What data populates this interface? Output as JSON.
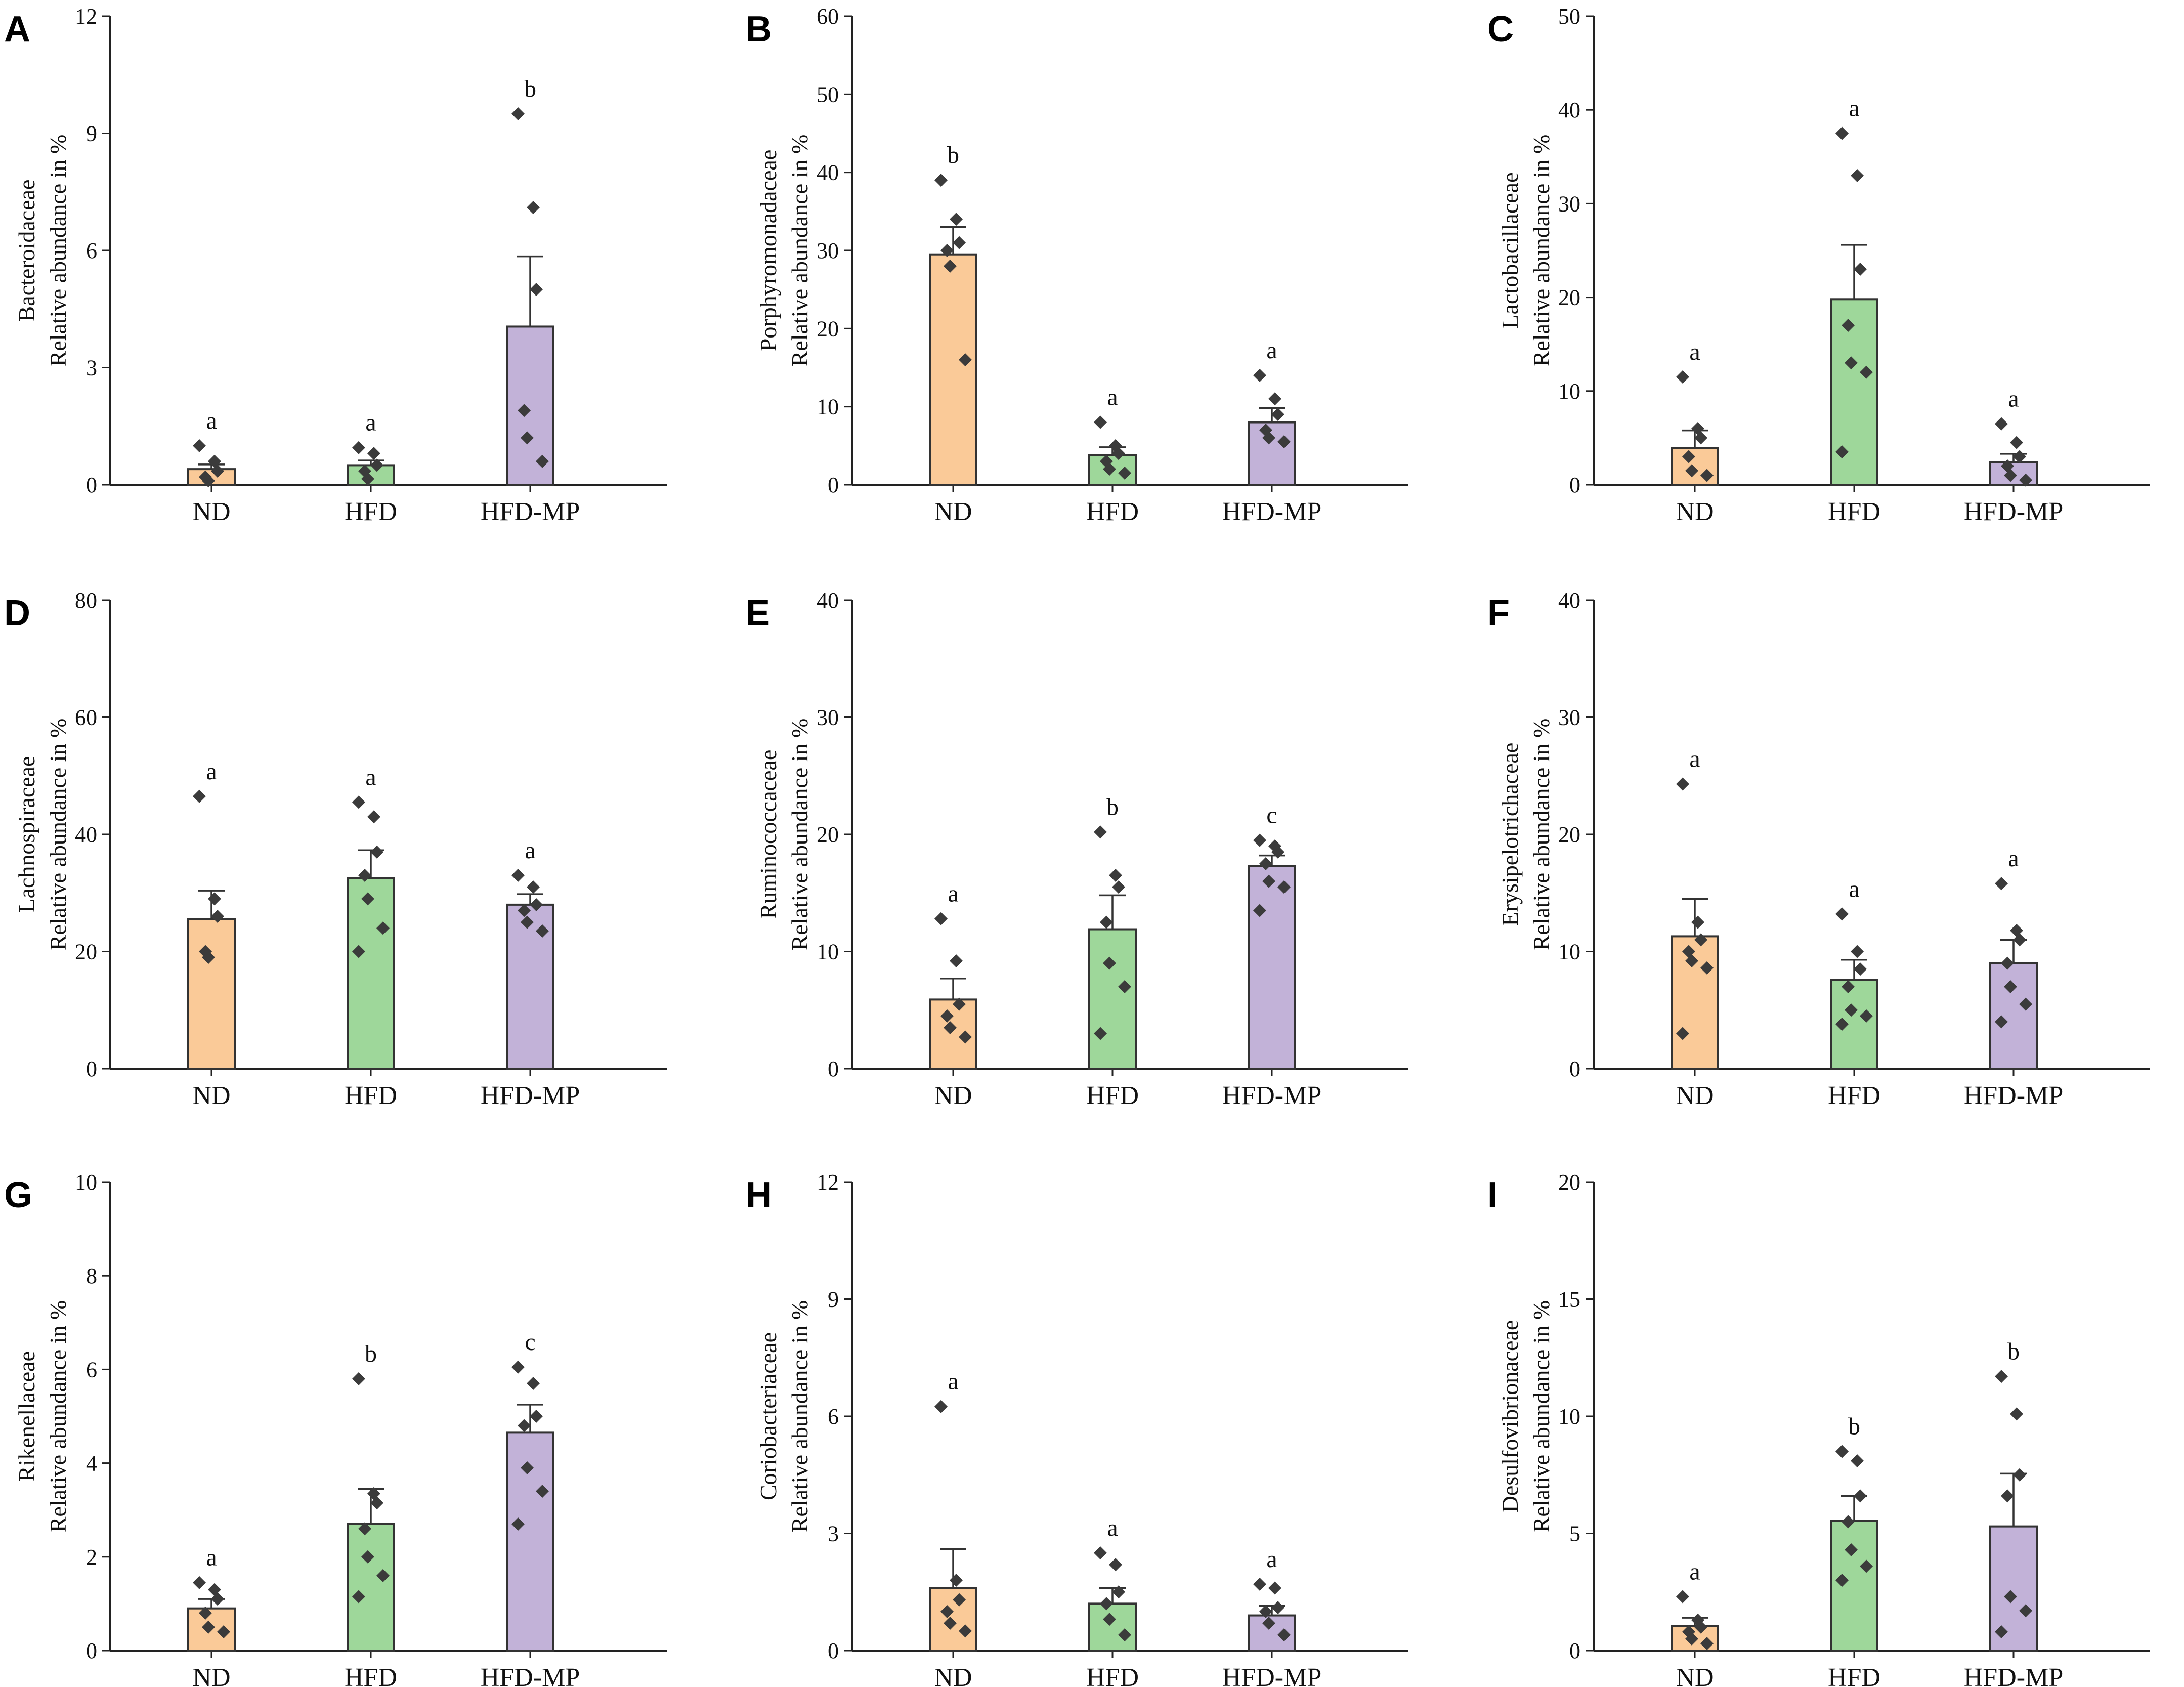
{
  "colors": {
    "ND": "#FACA98",
    "HFD": "#9ED79A",
    "HFD-MP": "#C2B2D8"
  },
  "chart_data": [
    {
      "type": "bar",
      "panel": "A",
      "title": "",
      "ylabel": [
        "Bacteroidaceae",
        "Relative abundance in %"
      ],
      "categories": [
        "ND",
        "HFD",
        "HFD-MP"
      ],
      "ylim": [
        0,
        12
      ],
      "yticks": [
        0,
        3,
        6,
        9,
        12
      ],
      "ytick_labels": [
        "0",
        "3",
        "6",
        "9",
        "12"
      ],
      "values": [
        0.4,
        0.5,
        4.05
      ],
      "errors": [
        0.12,
        0.12,
        1.8
      ],
      "significance": [
        "a",
        "a",
        "b"
      ],
      "points": [
        [
          1.0,
          0.6,
          0.35,
          0.2,
          0.1
        ],
        [
          0.95,
          0.8,
          0.5,
          0.35,
          0.15
        ],
        [
          9.5,
          7.1,
          5.0,
          1.9,
          1.2,
          0.6
        ]
      ]
    },
    {
      "type": "bar",
      "panel": "B",
      "title": "",
      "ylabel": [
        "Porphyromonadaceae",
        "Relative abundance in %"
      ],
      "categories": [
        "ND",
        "HFD",
        "HFD-MP"
      ],
      "ylim": [
        0,
        60
      ],
      "yticks": [
        0,
        10,
        20,
        30,
        40,
        50,
        60
      ],
      "ytick_labels": [
        "0",
        "10",
        "20",
        "30",
        "40",
        "50",
        "60"
      ],
      "values": [
        29.5,
        3.8,
        8.0
      ],
      "errors": [
        3.5,
        1.0,
        1.8
      ],
      "significance": [
        "b",
        "a",
        "a"
      ],
      "points": [
        [
          39,
          34,
          31,
          30,
          28,
          16
        ],
        [
          8,
          5,
          4,
          3,
          2,
          1.5
        ],
        [
          14,
          11,
          9,
          7,
          6,
          5.5
        ]
      ]
    },
    {
      "type": "bar",
      "panel": "C",
      "title": "",
      "ylabel": [
        "Lactobacillaceae",
        "Relative abundance in %"
      ],
      "categories": [
        "ND",
        "HFD",
        "HFD-MP"
      ],
      "ylim": [
        0,
        50
      ],
      "yticks": [
        0,
        10,
        20,
        30,
        40,
        50
      ],
      "ytick_labels": [
        "0",
        "10",
        "20",
        "30",
        "40",
        "50"
      ],
      "values": [
        3.9,
        19.8,
        2.4
      ],
      "errors": [
        1.9,
        5.8,
        0.9
      ],
      "significance": [
        "a",
        "a",
        "a"
      ],
      "points": [
        [
          11.5,
          6,
          5,
          3,
          1.5,
          1
        ],
        [
          37.5,
          33,
          23,
          17,
          13,
          12,
          3.5
        ],
        [
          6.5,
          4.5,
          3,
          2,
          1,
          0.5
        ]
      ]
    },
    {
      "type": "bar",
      "panel": "D",
      "title": "",
      "ylabel": [
        "Lachnospiraceae",
        "Relative abundance in %"
      ],
      "categories": [
        "ND",
        "HFD",
        "HFD-MP"
      ],
      "ylim": [
        0,
        80
      ],
      "yticks": [
        0,
        20,
        40,
        60,
        80
      ],
      "ytick_labels": [
        "0",
        "20",
        "40",
        "60",
        "80"
      ],
      "values": [
        25.5,
        32.5,
        28.0
      ],
      "errors": [
        4.9,
        4.8,
        1.8
      ],
      "significance": [
        "a",
        "a",
        "a"
      ],
      "points": [
        [
          46.5,
          29,
          26,
          20,
          19
        ],
        [
          45.5,
          43,
          37,
          33,
          29,
          24,
          20
        ],
        [
          33,
          31,
          28,
          27,
          25,
          23.5
        ]
      ]
    },
    {
      "type": "bar",
      "panel": "E",
      "title": "",
      "ylabel": [
        "Ruminococcaceae",
        "Relative abundance in %"
      ],
      "categories": [
        "ND",
        "HFD",
        "HFD-MP"
      ],
      "ylim": [
        0,
        40
      ],
      "yticks": [
        0,
        10,
        20,
        30,
        40
      ],
      "ytick_labels": [
        "0",
        "10",
        "20",
        "30",
        "40"
      ],
      "values": [
        5.9,
        11.9,
        17.3
      ],
      "errors": [
        1.8,
        2.9,
        0.9
      ],
      "significance": [
        "a",
        "b",
        "c"
      ],
      "points": [
        [
          12.8,
          9.2,
          5.5,
          4.5,
          3.5,
          2.7
        ],
        [
          20.2,
          16.5,
          15.5,
          12.5,
          9,
          7,
          3
        ],
        [
          19.5,
          19,
          18.5,
          17.5,
          16,
          15.5,
          13.5
        ]
      ]
    },
    {
      "type": "bar",
      "panel": "F",
      "title": "",
      "ylabel": [
        "Erysipelotrichaceae",
        "Relative abundance in %"
      ],
      "categories": [
        "ND",
        "HFD",
        "HFD-MP"
      ],
      "ylim": [
        0,
        40
      ],
      "yticks": [
        0,
        10,
        20,
        30,
        40
      ],
      "ytick_labels": [
        "0",
        "10",
        "20",
        "30",
        "40"
      ],
      "values": [
        11.3,
        7.6,
        9.0
      ],
      "errors": [
        3.2,
        1.7,
        2.0
      ],
      "significance": [
        "a",
        "a",
        "a"
      ],
      "points": [
        [
          24.3,
          12.5,
          11,
          10,
          9.2,
          8.6,
          3
        ],
        [
          13.2,
          10,
          8.5,
          7,
          5,
          4.5,
          3.8
        ],
        [
          15.8,
          11.8,
          11,
          9,
          7,
          5.5,
          4
        ]
      ]
    },
    {
      "type": "bar",
      "panel": "G",
      "title": "",
      "ylabel": [
        "Rikenellaceae",
        "Relative abundance in %"
      ],
      "categories": [
        "ND",
        "HFD",
        "HFD-MP"
      ],
      "ylim": [
        0,
        10
      ],
      "yticks": [
        0,
        2,
        4,
        6,
        8,
        10
      ],
      "ytick_labels": [
        "0",
        "2",
        "4",
        "6",
        "8",
        "10"
      ],
      "values": [
        0.9,
        2.7,
        4.65
      ],
      "errors": [
        0.2,
        0.75,
        0.6
      ],
      "significance": [
        "a",
        "b",
        "c"
      ],
      "points": [
        [
          1.45,
          1.3,
          1.1,
          0.8,
          0.5,
          0.4
        ],
        [
          5.8,
          3.35,
          3.15,
          2.6,
          2.0,
          1.6,
          1.15
        ],
        [
          6.05,
          5.7,
          5.0,
          4.8,
          3.9,
          3.4,
          2.7
        ]
      ]
    },
    {
      "type": "bar",
      "panel": "H",
      "title": "",
      "ylabel": [
        "Coriobacteriaceae",
        "Relative abundance in %"
      ],
      "categories": [
        "ND",
        "HFD",
        "HFD-MP"
      ],
      "ylim": [
        0,
        12
      ],
      "yticks": [
        0,
        3,
        6,
        9,
        12
      ],
      "ytick_labels": [
        "0",
        "3",
        "6",
        "9",
        "12"
      ],
      "values": [
        1.6,
        1.2,
        0.9
      ],
      "errors": [
        1.0,
        0.4,
        0.25
      ],
      "significance": [
        "a",
        "a",
        "a"
      ],
      "points": [
        [
          6.25,
          1.8,
          1.3,
          1.0,
          0.7,
          0.5
        ],
        [
          2.5,
          2.2,
          1.5,
          1.2,
          0.8,
          0.4
        ],
        [
          1.7,
          1.6,
          1.1,
          1.0,
          0.7,
          0.4
        ]
      ]
    },
    {
      "type": "bar",
      "panel": "I",
      "title": "",
      "ylabel": [
        "Desulfovibrionaceae",
        "Relative abundance in %"
      ],
      "categories": [
        "ND",
        "HFD",
        "HFD-MP"
      ],
      "ylim": [
        0,
        20
      ],
      "yticks": [
        0,
        5,
        10,
        15,
        20
      ],
      "ytick_labels": [
        "0",
        "5",
        "10",
        "15",
        "20"
      ],
      "values": [
        1.05,
        5.55,
        5.3
      ],
      "errors": [
        0.35,
        1.05,
        2.25
      ],
      "significance": [
        "a",
        "b",
        "b"
      ],
      "points": [
        [
          2.3,
          1.3,
          1.0,
          0.8,
          0.5,
          0.3
        ],
        [
          8.5,
          8.1,
          6.6,
          5.5,
          4.3,
          3.6,
          3.0
        ],
        [
          11.7,
          10.1,
          7.5,
          6.6,
          2.3,
          1.7,
          0.8
        ]
      ]
    }
  ]
}
